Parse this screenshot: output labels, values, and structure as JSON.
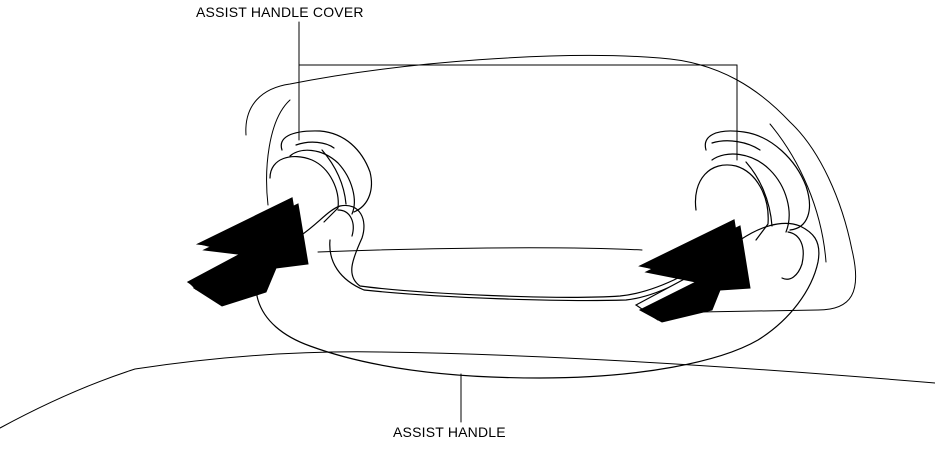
{
  "labels": {
    "cover": "ASSIST HANDLE COVER",
    "handle": "ASSIST HANDLE"
  }
}
